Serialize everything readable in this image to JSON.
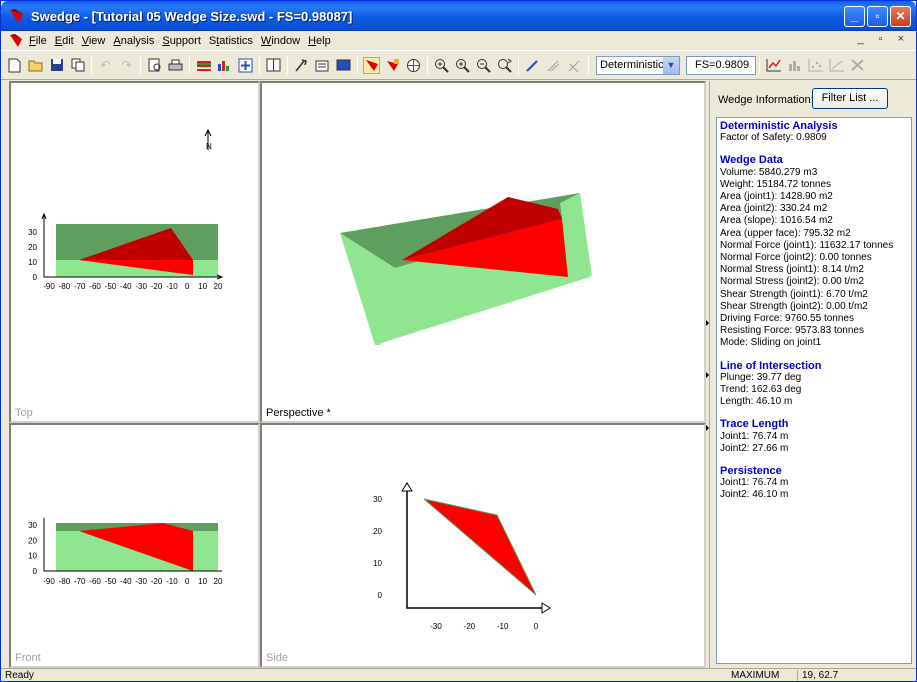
{
  "titlebar": {
    "title": "Swedge - [Tutorial 05 Wedge Size.swd - FS=0.98087]",
    "min": "_",
    "max": "▫",
    "close": "✕"
  },
  "menu": [
    "File",
    "Edit",
    "View",
    "Analysis",
    "Support",
    "Statistics",
    "Window",
    "Help"
  ],
  "menu_underline": [
    "F",
    "E",
    "V",
    "A",
    "S",
    "t",
    "W",
    "H"
  ],
  "mdi_controls": "_ ▫ ×",
  "toolbar": {
    "mode_value": "Deterministic",
    "fs_value": "FS=0.9809"
  },
  "views": {
    "top": {
      "label": "Top",
      "north": "N",
      "x_ticks": [
        "-90",
        "-80",
        "-70",
        "-60",
        "-50",
        "-40",
        "-30",
        "-20",
        "-10",
        "0",
        "10",
        "20"
      ],
      "y_ticks": [
        "30",
        "20",
        "10",
        "0"
      ]
    },
    "front": {
      "label": "Front",
      "x_ticks": [
        "-90",
        "-80",
        "-70",
        "-60",
        "-50",
        "-40",
        "-30",
        "-20",
        "-10",
        "0",
        "10",
        "20"
      ],
      "y_ticks": [
        "30",
        "20",
        "10",
        "0"
      ]
    },
    "perspective": {
      "label": "Perspective *"
    },
    "side": {
      "label": "Side",
      "x_ticks": [
        "-30",
        "-20",
        "-10",
        "0"
      ],
      "y_ticks": [
        "30",
        "20",
        "10",
        "0"
      ]
    }
  },
  "right_panel": {
    "header": "Wedge Information:",
    "filter_button": "Filter List ...",
    "sections": [
      {
        "title": "Deterministic Analysis",
        "lines": [
          "Factor of Safety: 0.9809"
        ]
      },
      {
        "title": "Wedge Data",
        "lines": [
          "Volume: 5840.279 m3",
          "Weight: 15184.72 tonnes",
          "Area (joint1): 1428.90 m2",
          "Area (joint2): 330.24 m2",
          "Area (slope): 1016.54 m2",
          "Area (upper face): 795.32 m2",
          "Normal Force (joint1): 11632.17 tonnes",
          "Normal Force (joint2): 0.00 tonnes",
          "Normal Stress (joint1): 8.14 t/m2",
          "Normal Stress (joint2): 0.00 t/m2",
          "Shear Strength (joint1): 6.70 t/m2",
          "Shear Strength (joint2): 0.00 t/m2",
          "Driving Force: 9760.55 tonnes",
          "Resisting Force: 9573.83 tonnes",
          "Mode: Sliding on joint1"
        ]
      },
      {
        "title": "Line of Intersection",
        "lines": [
          "Plunge: 39.77 deg",
          "Trend: 162.63 deg",
          "Length: 46.10 m"
        ]
      },
      {
        "title": "Trace Length",
        "lines": [
          "Joint1: 76.74 m",
          "Joint2: 27.66 m"
        ]
      },
      {
        "title": "Persistence",
        "lines": [
          "Joint1: 76.74 m",
          "Joint2: 46.10 m"
        ]
      }
    ]
  },
  "status": {
    "left": "Ready",
    "mode": "MAXIMUM",
    "coords": "19, 62.7"
  },
  "colors": {
    "wedge": "#FF0000",
    "wedge_dark": "#C00000",
    "slope": "#90E590",
    "slope_dark": "#5E9E5E",
    "title_blue": "#0A5EEA",
    "section_blue": "#0000CC"
  }
}
